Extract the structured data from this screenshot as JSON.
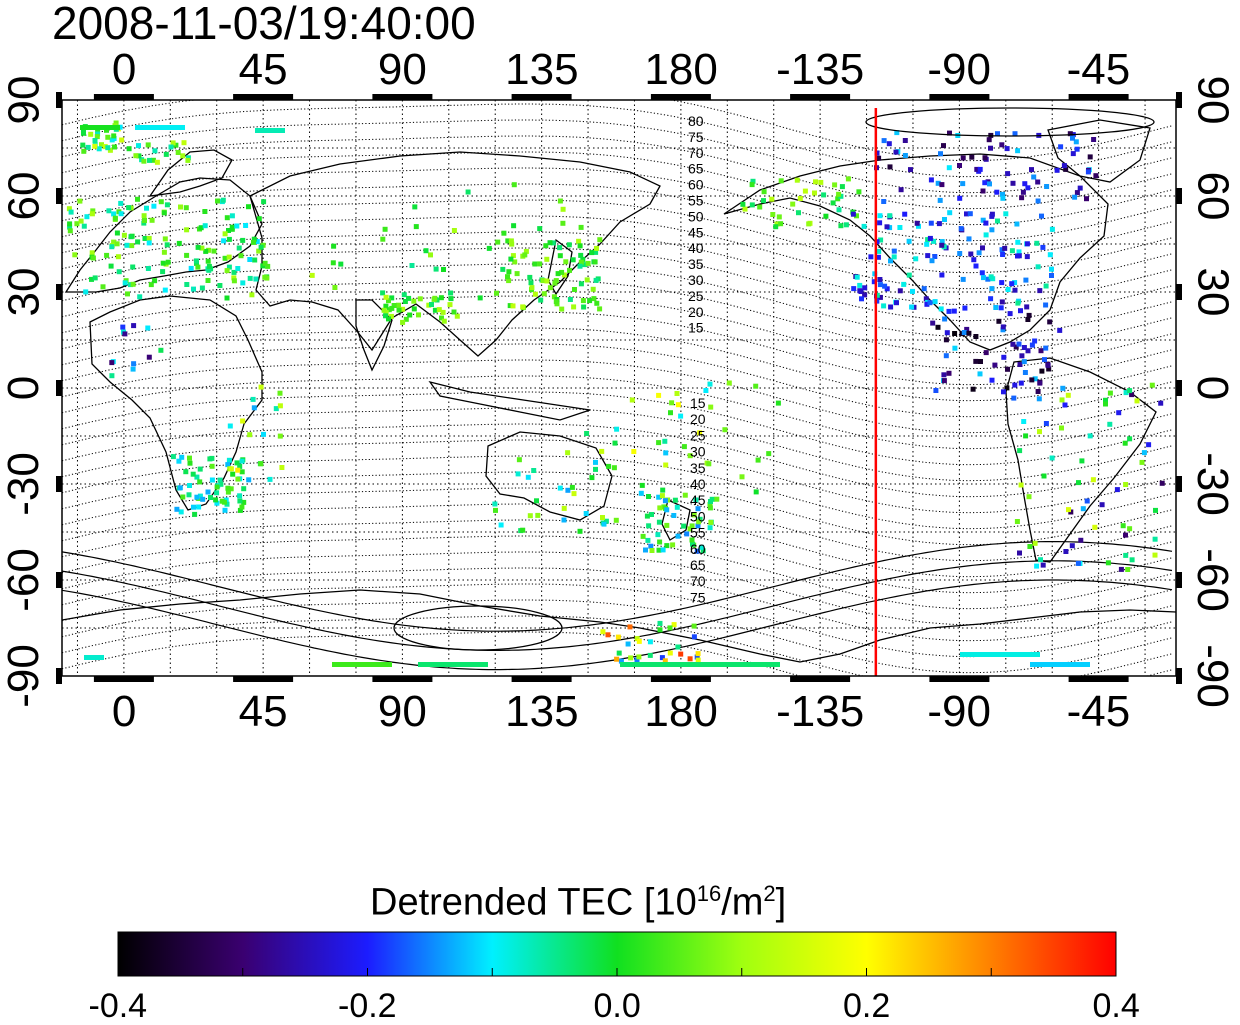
{
  "header": {
    "timestamp": "2008-11-03/19:40:00"
  },
  "map": {
    "lon_ticks_top": [
      "0",
      "45",
      "90",
      "135",
      "180",
      "-135",
      "-90",
      "-45"
    ],
    "lon_ticks_bottom": [
      "0",
      "45",
      "90",
      "135",
      "180",
      "-135",
      "-90",
      "-45"
    ],
    "lat_ticks_left": [
      "90",
      "60",
      "30",
      "0",
      "-30",
      "-60",
      "-90"
    ],
    "lat_ticks_right": [
      "90",
      "60",
      "30",
      "0",
      "-30",
      "-60",
      "-90"
    ],
    "magnetic_lat_labels_north": [
      "80",
      "75",
      "70",
      "65",
      "60",
      "55",
      "50",
      "45",
      "40",
      "35",
      "30",
      "25",
      "20",
      "15"
    ],
    "magnetic_lat_labels_south": [
      "15",
      "20",
      "25",
      "30",
      "35",
      "40",
      "45",
      "50",
      "55",
      "60",
      "65",
      "70",
      "75"
    ],
    "terminator_color": "#ff0000",
    "terminator_longitude": -117,
    "lon_range": [
      -20,
      340
    ],
    "lat_range": [
      -90,
      90
    ]
  },
  "colorbar": {
    "title_prefix": "Detrended TEC  [10",
    "title_exp": "16",
    "title_mid": "/m",
    "title_exp2": "2",
    "title_suffix": "]",
    "tick_labels": [
      "-0.4",
      "-0.2",
      "0.0",
      "0.2",
      "0.4"
    ],
    "range": [
      -0.4,
      0.4
    ],
    "colors": [
      "#000000",
      "#3a0070",
      "#1c1cff",
      "#00f0ff",
      "#10e020",
      "#a0ff10",
      "#ffff00",
      "#ff8000",
      "#ff0000"
    ]
  }
}
